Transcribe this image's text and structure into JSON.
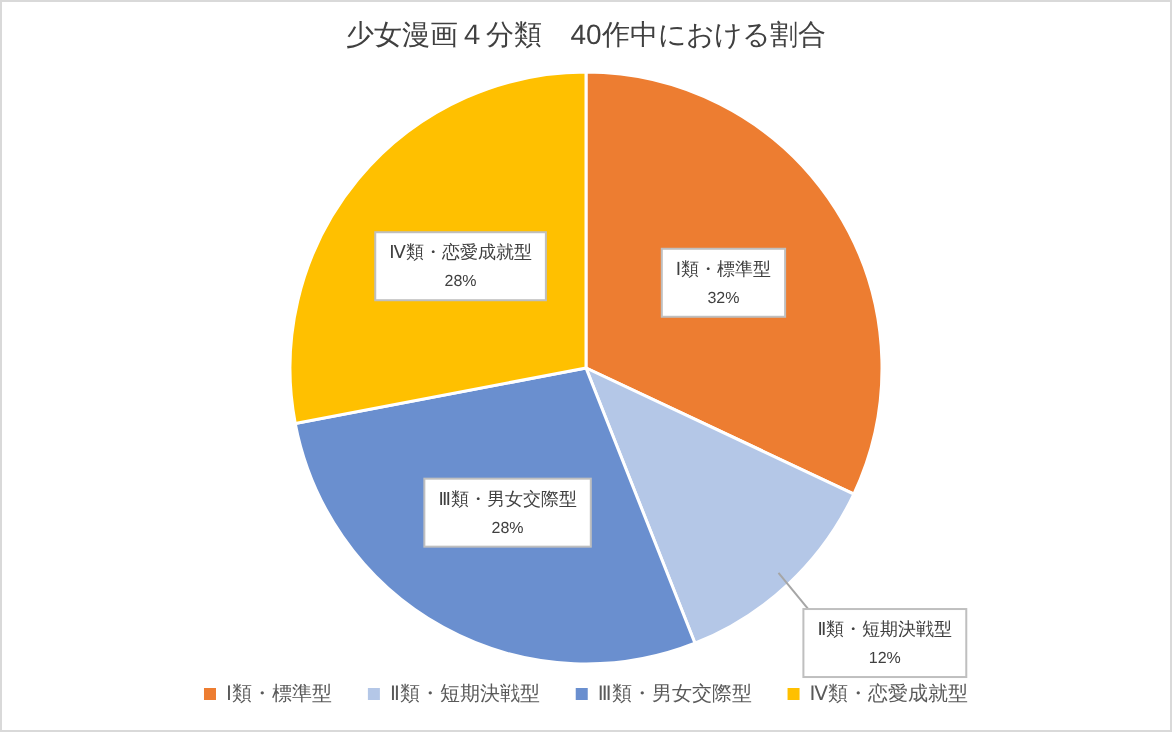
{
  "chart_data": {
    "type": "pie",
    "title": "少女漫画４分類　40作中における割合",
    "categories": [
      "Ⅰ類・標準型",
      "Ⅱ類・短期決戦型",
      "Ⅲ類・男女交際型",
      "Ⅳ類・恋愛成就型"
    ],
    "values": [
      32,
      12,
      28,
      28
    ],
    "colors": [
      "#ed7d31",
      "#b4c7e7",
      "#6a8fcf",
      "#ffc000"
    ],
    "value_labels": [
      "32%",
      "12%",
      "28%",
      "28%"
    ],
    "legend": "bottom"
  }
}
